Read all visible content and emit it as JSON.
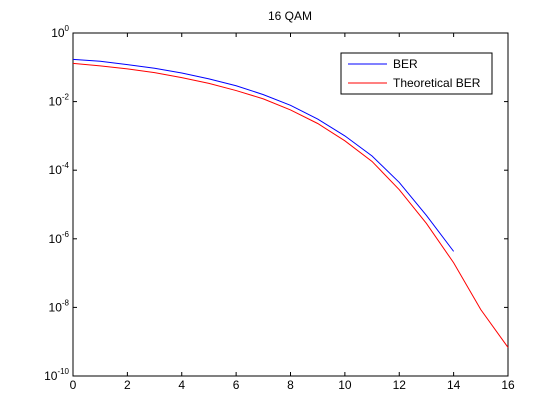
{
  "chart_data": {
    "type": "line",
    "title": "16 QAM",
    "xlabel": "",
    "ylabel": "",
    "xlim": [
      0,
      16
    ],
    "ylim": [
      1e-10,
      1
    ],
    "yscale": "log",
    "grid": false,
    "legend_position": "top-right",
    "x_ticks": [
      {
        "value": 0,
        "label": "0"
      },
      {
        "value": 2,
        "label": "2"
      },
      {
        "value": 4,
        "label": "4"
      },
      {
        "value": 6,
        "label": "6"
      },
      {
        "value": 8,
        "label": "8"
      },
      {
        "value": 10,
        "label": "10"
      },
      {
        "value": 12,
        "label": "12"
      },
      {
        "value": 14,
        "label": "14"
      },
      {
        "value": 16,
        "label": "16"
      }
    ],
    "y_ticks": [
      {
        "value": 1,
        "base": "10",
        "exp": "0"
      },
      {
        "value": 0.01,
        "base": "10",
        "exp": "-2"
      },
      {
        "value": 0.0001,
        "base": "10",
        "exp": "-4"
      },
      {
        "value": 1e-06,
        "base": "10",
        "exp": "-6"
      },
      {
        "value": 1e-08,
        "base": "10",
        "exp": "-8"
      },
      {
        "value": 1e-10,
        "base": "10",
        "exp": "-10"
      }
    ],
    "series": [
      {
        "name": "BER",
        "color": "#0000ff",
        "x": [
          0,
          1,
          2,
          3,
          4,
          5,
          6,
          7,
          8,
          9,
          10,
          11,
          12,
          13,
          14
        ],
        "y": [
          0.17,
          0.15,
          0.12,
          0.094,
          0.068,
          0.046,
          0.029,
          0.016,
          0.0078,
          0.0031,
          0.001,
          0.00026,
          4.4e-05,
          4.8e-06,
          4.3e-07
        ]
      },
      {
        "name": "Theoretical BER",
        "color": "#ff0000",
        "x": [
          0,
          1,
          2,
          3,
          4,
          5,
          6,
          7,
          8,
          9,
          10,
          11,
          12,
          13,
          14,
          15,
          16
        ],
        "y": [
          0.13,
          0.11,
          0.09,
          0.07,
          0.05,
          0.034,
          0.021,
          0.012,
          0.0057,
          0.0023,
          0.00072,
          0.00018,
          2.7e-05,
          2.8e-06,
          2e-07,
          8.6e-09,
          6.8e-10
        ]
      }
    ]
  }
}
